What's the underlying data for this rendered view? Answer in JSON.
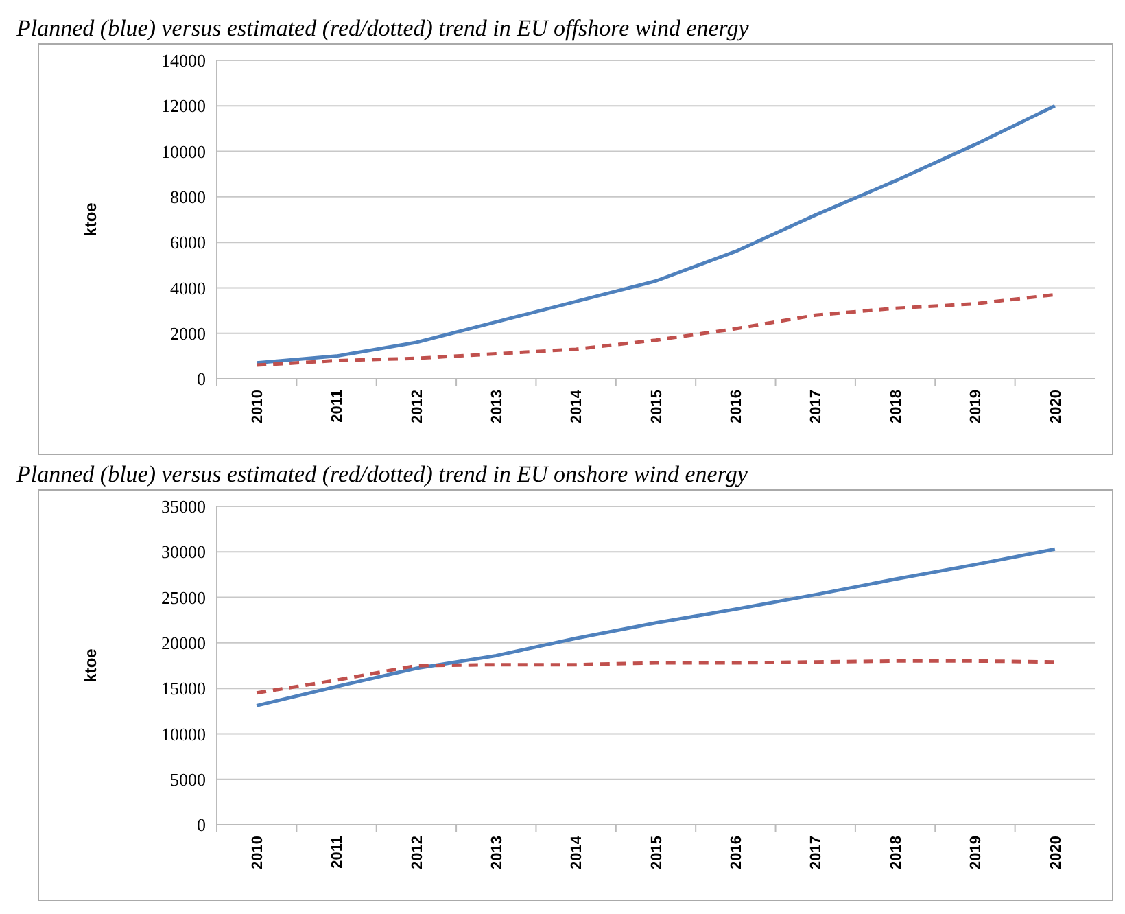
{
  "chart_data": [
    {
      "type": "line",
      "title": "Planned (blue) versus estimated (red/dotted) trend in EU offshore wind energy",
      "ylabel": "ktoe",
      "categories": [
        "2010",
        "2011",
        "2012",
        "2013",
        "2014",
        "2015",
        "2016",
        "2017",
        "2018",
        "2019",
        "2020"
      ],
      "ylim": [
        0,
        14000
      ],
      "yticks": [
        0,
        2000,
        4000,
        6000,
        8000,
        10000,
        12000,
        14000
      ],
      "grid": "y",
      "series": [
        {
          "color": "#4f81bd",
          "line_style": "solid",
          "values": [
            700,
            1000,
            1600,
            2500,
            3400,
            4300,
            5600,
            7200,
            8700,
            10300,
            12000
          ]
        },
        {
          "color": "#c0504d",
          "line_style": "dashed",
          "values": [
            600,
            800,
            900,
            1100,
            1300,
            1700,
            2200,
            2800,
            3100,
            3300,
            3700
          ]
        }
      ]
    },
    {
      "type": "line",
      "title": "Planned (blue) versus estimated (red/dotted) trend in EU onshore wind energy",
      "ylabel": "ktoe",
      "categories": [
        "2010",
        "2011",
        "2012",
        "2013",
        "2014",
        "2015",
        "2016",
        "2017",
        "2018",
        "2019",
        "2020"
      ],
      "ylim": [
        0,
        35000
      ],
      "yticks": [
        0,
        5000,
        10000,
        15000,
        20000,
        25000,
        30000,
        35000
      ],
      "grid": "y",
      "series": [
        {
          "color": "#4f81bd",
          "line_style": "solid",
          "values": [
            13100,
            15200,
            17200,
            18600,
            20500,
            22200,
            23700,
            25300,
            27000,
            28600,
            30300
          ]
        },
        {
          "color": "#c0504d",
          "line_style": "dashed",
          "values": [
            14500,
            15900,
            17500,
            17600,
            17600,
            17800,
            17800,
            17900,
            18000,
            18000,
            17900
          ]
        }
      ]
    }
  ]
}
